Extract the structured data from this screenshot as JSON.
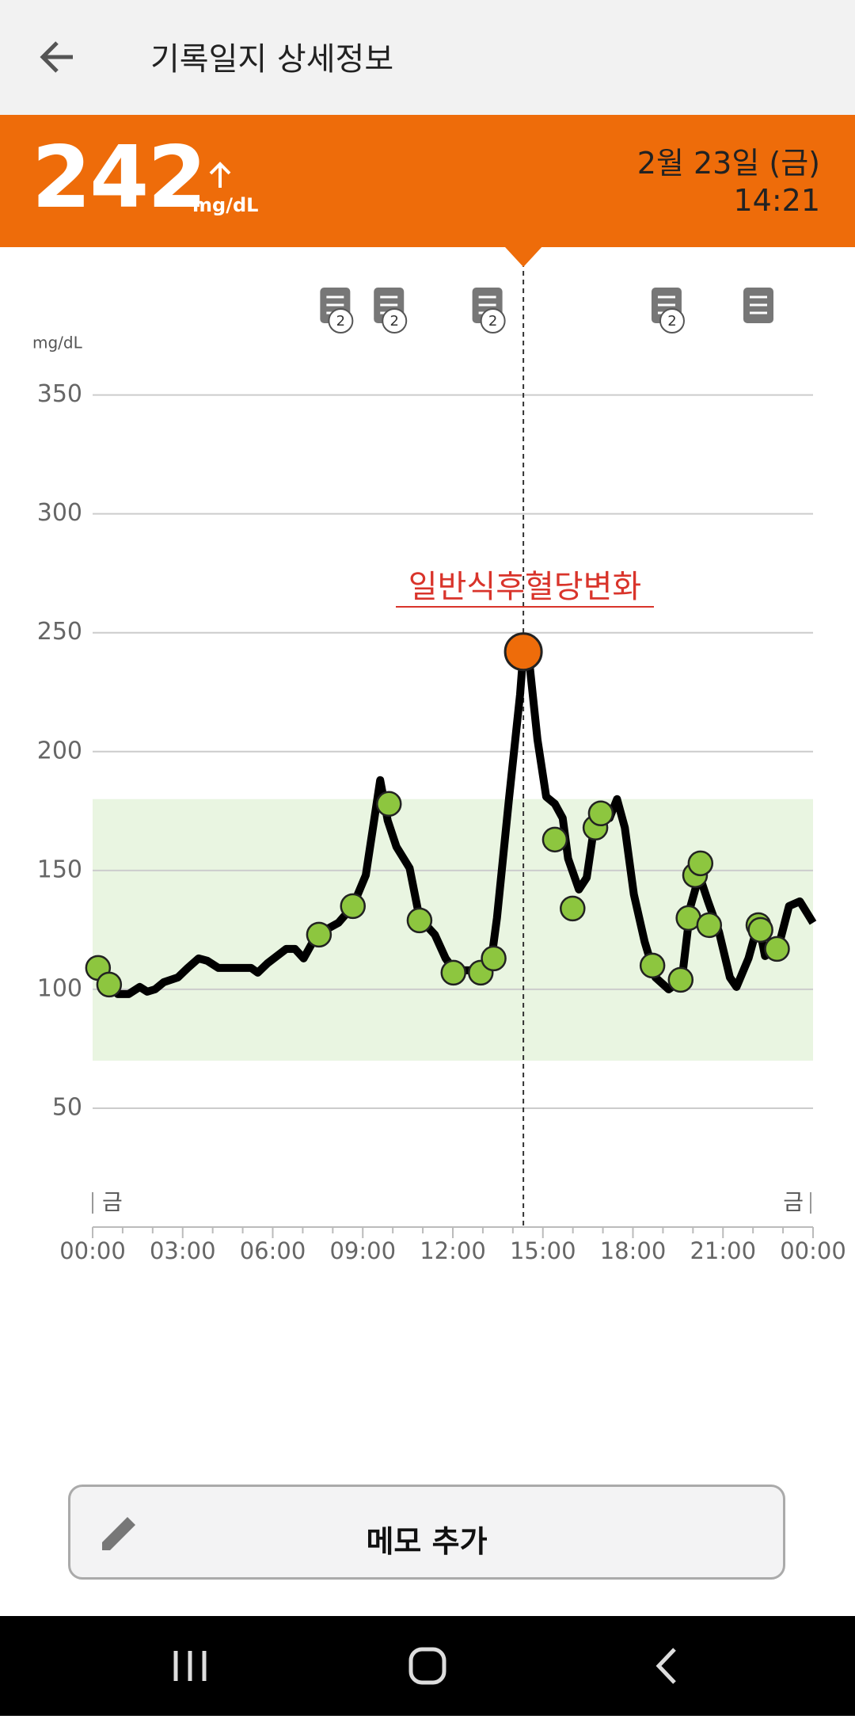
{
  "header": {
    "title": "기록일지 상세정보"
  },
  "reading": {
    "value": 242,
    "unit": "mg/dL",
    "date": "2월 23일 (금)",
    "time": "14:21"
  },
  "chart_data": {
    "type": "line",
    "y_label": "mg/dL",
    "annotation": "일반식후혈당변화",
    "xlim": [
      0,
      24
    ],
    "xticks": [
      {
        "value": 0,
        "label": "00:00"
      },
      {
        "value": 3,
        "label": "03:00"
      },
      {
        "value": 6,
        "label": "06:00"
      },
      {
        "value": 9,
        "label": "09:00"
      },
      {
        "value": 12,
        "label": "12:00"
      },
      {
        "value": 15,
        "label": "15:00"
      },
      {
        "value": 18,
        "label": "18:00"
      },
      {
        "value": 21,
        "label": "21:00"
      },
      {
        "value": 24,
        "label": "00:00"
      }
    ],
    "xminorticks": [
      1,
      2,
      4,
      5,
      7,
      8,
      10,
      11,
      13,
      14,
      16,
      17,
      19,
      20,
      22,
      23
    ],
    "ylim": [
      0,
      350
    ],
    "yticks": [
      50,
      100,
      150,
      200,
      250,
      300,
      350
    ],
    "grid": true,
    "target_range": [
      70,
      180
    ],
    "target_color": "#e9f5e1",
    "day_labels": [
      "금",
      "금"
    ],
    "current_x": 14.35,
    "current_color": "#ee6c0a",
    "series": [
      {
        "type": "line",
        "color": "#000000",
        "x": [
          0.18,
          0.55,
          0.84,
          1.2,
          1.57,
          1.82,
          2.08,
          2.37,
          2.84,
          3.17,
          3.53,
          3.82,
          4.19,
          4.73,
          5.28,
          5.5,
          5.83,
          6.45,
          6.74,
          7.03,
          7.47,
          8.19,
          8.67,
          9.1,
          9.58,
          9.83,
          10.12,
          10.56,
          10.89,
          11.4,
          11.76,
          12.05,
          12.56,
          12.96,
          13.29,
          13.47,
          13.87,
          14.24,
          14.35,
          14.57,
          14.82,
          15.11,
          15.4,
          15.66,
          15.84,
          16.2,
          16.46,
          16.75,
          17.0,
          17.22,
          17.47,
          17.73,
          18.03,
          18.39,
          18.75,
          19.19,
          19.63,
          19.92,
          20.21,
          20.5,
          20.87,
          21.23,
          21.45,
          21.85,
          22.18,
          22.4,
          22.83,
          23.2,
          23.56,
          24
        ],
        "values": [
          109,
          102,
          98,
          98,
          101,
          99,
          100,
          103,
          105,
          109,
          113,
          112,
          109,
          109,
          109,
          107,
          111,
          117,
          117,
          113,
          123,
          128,
          135,
          148,
          188,
          171,
          160,
          151,
          130,
          123,
          113,
          108,
          108,
          108,
          113,
          130,
          180,
          224,
          242,
          235,
          205,
          181,
          178,
          172,
          155,
          142,
          147,
          172,
          174,
          172,
          180,
          168,
          140,
          120,
          105,
          100,
          104,
          135,
          148,
          137,
          124,
          105,
          101,
          113,
          128,
          114,
          117,
          135,
          137,
          128
        ]
      },
      {
        "type": "scatter",
        "color": "#8dc63f",
        "x": [
          0.18,
          0.55,
          7.54,
          8.67,
          9.87,
          10.89,
          12.02,
          12.93,
          13.36,
          15.4,
          15.99,
          16.75,
          16.93,
          18.65,
          19.59,
          19.85,
          20.07,
          20.25,
          20.54,
          22.18,
          22.25,
          22.8
        ],
        "values": [
          109,
          102,
          123,
          135,
          178,
          129,
          107,
          107,
          113,
          163,
          134,
          168,
          174,
          110,
          104,
          130,
          148,
          153,
          127,
          127,
          125,
          117
        ]
      }
    ],
    "memos": {
      "x": [
        8.08,
        9.87,
        13.15,
        19.12,
        22.18
      ],
      "counts": [
        2,
        2,
        2,
        2,
        null
      ]
    }
  },
  "button": {
    "label": "메모 추가"
  }
}
